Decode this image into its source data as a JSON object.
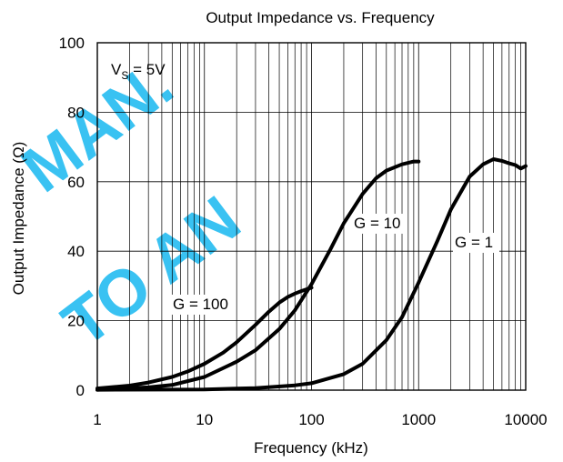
{
  "chart_data": {
    "type": "line",
    "title": "Output Impedance vs. Frequency",
    "xlabel": "Frequency (kHz)",
    "ylabel": "Output Impedance (Ω)",
    "x_scale": "log",
    "xlim": [
      1,
      10000
    ],
    "ylim": [
      0,
      100
    ],
    "x_ticks": [
      "1",
      "10",
      "100",
      "1000",
      "10000"
    ],
    "y_ticks": [
      "0",
      "20",
      "40",
      "60",
      "80",
      "100"
    ],
    "grid": true,
    "annotation": {
      "main": "V",
      "sub": "S",
      "rest": " = 5V"
    },
    "series": [
      {
        "name": "G = 100",
        "x": [
          1,
          2,
          3,
          5,
          7,
          10,
          15,
          20,
          30,
          40,
          50,
          60,
          70,
          80,
          100
        ],
        "y": [
          0.5,
          1.3,
          2.2,
          3.8,
          5.4,
          7.6,
          10.8,
          13.8,
          18.8,
          22.6,
          25.2,
          26.8,
          27.8,
          28.5,
          29.5
        ]
      },
      {
        "name": "G = 10",
        "x": [
          1,
          3,
          5,
          10,
          20,
          30,
          50,
          70,
          100,
          150,
          200,
          300,
          400,
          500,
          700,
          900,
          1000
        ],
        "y": [
          0.1,
          0.8,
          1.5,
          3.8,
          8.2,
          11.5,
          17.6,
          23,
          30.5,
          40.5,
          48,
          56.5,
          61,
          63.2,
          65,
          65.8,
          65.8
        ]
      },
      {
        "name": "G = 1",
        "x": [
          1,
          10,
          30,
          70,
          100,
          200,
          300,
          500,
          700,
          1000,
          1500,
          2000,
          3000,
          4000,
          5000,
          6000,
          7000,
          8000,
          9000,
          10000
        ],
        "y": [
          0.1,
          0.2,
          0.6,
          1.4,
          2,
          4.6,
          7.6,
          14.4,
          21,
          31,
          43,
          52,
          61.5,
          65,
          66.5,
          66,
          65.3,
          64.8,
          63.8,
          64.5
        ]
      }
    ]
  },
  "colors": {
    "line": "#000000",
    "grid": "#000000",
    "watermark": "#17b8f0"
  },
  "watermark": {
    "text_1": "MAN.",
    "text_2": "TO AN"
  }
}
